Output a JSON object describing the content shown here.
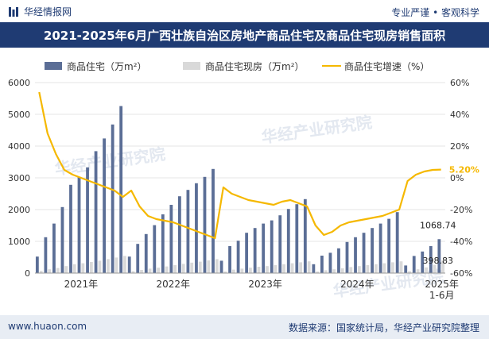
{
  "header": {
    "brand": "华经情报网",
    "tagline": "专业严谨 • 客观科学"
  },
  "title": "2021-2025年6月广西壮族自治区房地产商品住宅及商品住宅现房销售面积",
  "footer": {
    "website": "www.huaon.com",
    "source": "数据来源：国家统计局，华经产业研究院整理"
  },
  "watermark": "华经产业研究院",
  "colors": {
    "bar_sales": "#5b6e96",
    "bar_stock": "#d9d9d9",
    "line": "#f5b800",
    "title_bg": "#1f3b73"
  },
  "chart_data": {
    "type": "bar+line",
    "title": "2021-2025年6月广西壮族自治区房地产商品住宅及商品住宅现房销售面积",
    "legend": [
      "商品住宅（万m²）",
      "商品住宅现房（万m²）",
      "商品住宅增速（%）"
    ],
    "y_left": {
      "min": 0,
      "max": 6000,
      "ticks": [
        "0",
        "1000",
        "2000",
        "3000",
        "4000",
        "5000",
        "6000"
      ]
    },
    "y_right": {
      "min": -60,
      "max": 60,
      "ticks": [
        "-60%",
        "-40%",
        "-20%",
        "0%",
        "20%",
        "40%",
        "60%"
      ]
    },
    "x_labels": [
      "2021年",
      "2022年",
      "2023年",
      "2024年",
      "2025年\n1-6月"
    ],
    "series": [
      {
        "name": "商品住宅（万m²）",
        "axis": "left",
        "values": [
          520,
          1130,
          1560,
          2080,
          2780,
          3030,
          3330,
          3840,
          4240,
          4680,
          5260,
          520,
          920,
          1230,
          1510,
          1850,
          2150,
          2420,
          2620,
          2830,
          3030,
          3280,
          390,
          850,
          1020,
          1270,
          1420,
          1560,
          1660,
          1820,
          2020,
          2170,
          2330,
          280,
          550,
          640,
          780,
          980,
          1130,
          1270,
          1420,
          1560,
          1710,
          1920,
          240,
          540,
          680,
          850,
          1068.74
        ]
      },
      {
        "name": "商品住宅现房（万m²）",
        "axis": "left",
        "values": [
          70,
          120,
          160,
          220,
          280,
          310,
          350,
          390,
          440,
          490,
          540,
          60,
          100,
          140,
          170,
          210,
          250,
          290,
          330,
          360,
          400,
          440,
          50,
          110,
          140,
          170,
          200,
          220,
          250,
          280,
          310,
          340,
          370,
          50,
          90,
          120,
          150,
          190,
          220,
          250,
          280,
          310,
          340,
          370,
          60,
          120,
          180,
          260,
          398.83
        ]
      },
      {
        "name": "商品住宅增速（%）",
        "axis": "right",
        "values": [
          54,
          28,
          15,
          5,
          2,
          0,
          -2,
          -4,
          -6,
          -8,
          -12,
          -8,
          -18,
          -24,
          -26,
          -27,
          -28,
          -30,
          -32,
          -34,
          -36,
          -38,
          -6,
          -10,
          -12,
          -14,
          -15,
          -16,
          -17,
          -15,
          -14,
          -16,
          -18,
          -30,
          -36,
          -34,
          -30,
          -28,
          -27,
          -26,
          -25,
          -24,
          -22,
          -20,
          -2,
          2,
          4,
          5,
          5.2
        ]
      }
    ],
    "labels": {
      "bar_last": "1068.74",
      "stock_last": "398.83",
      "line_last": "5.20%"
    }
  }
}
